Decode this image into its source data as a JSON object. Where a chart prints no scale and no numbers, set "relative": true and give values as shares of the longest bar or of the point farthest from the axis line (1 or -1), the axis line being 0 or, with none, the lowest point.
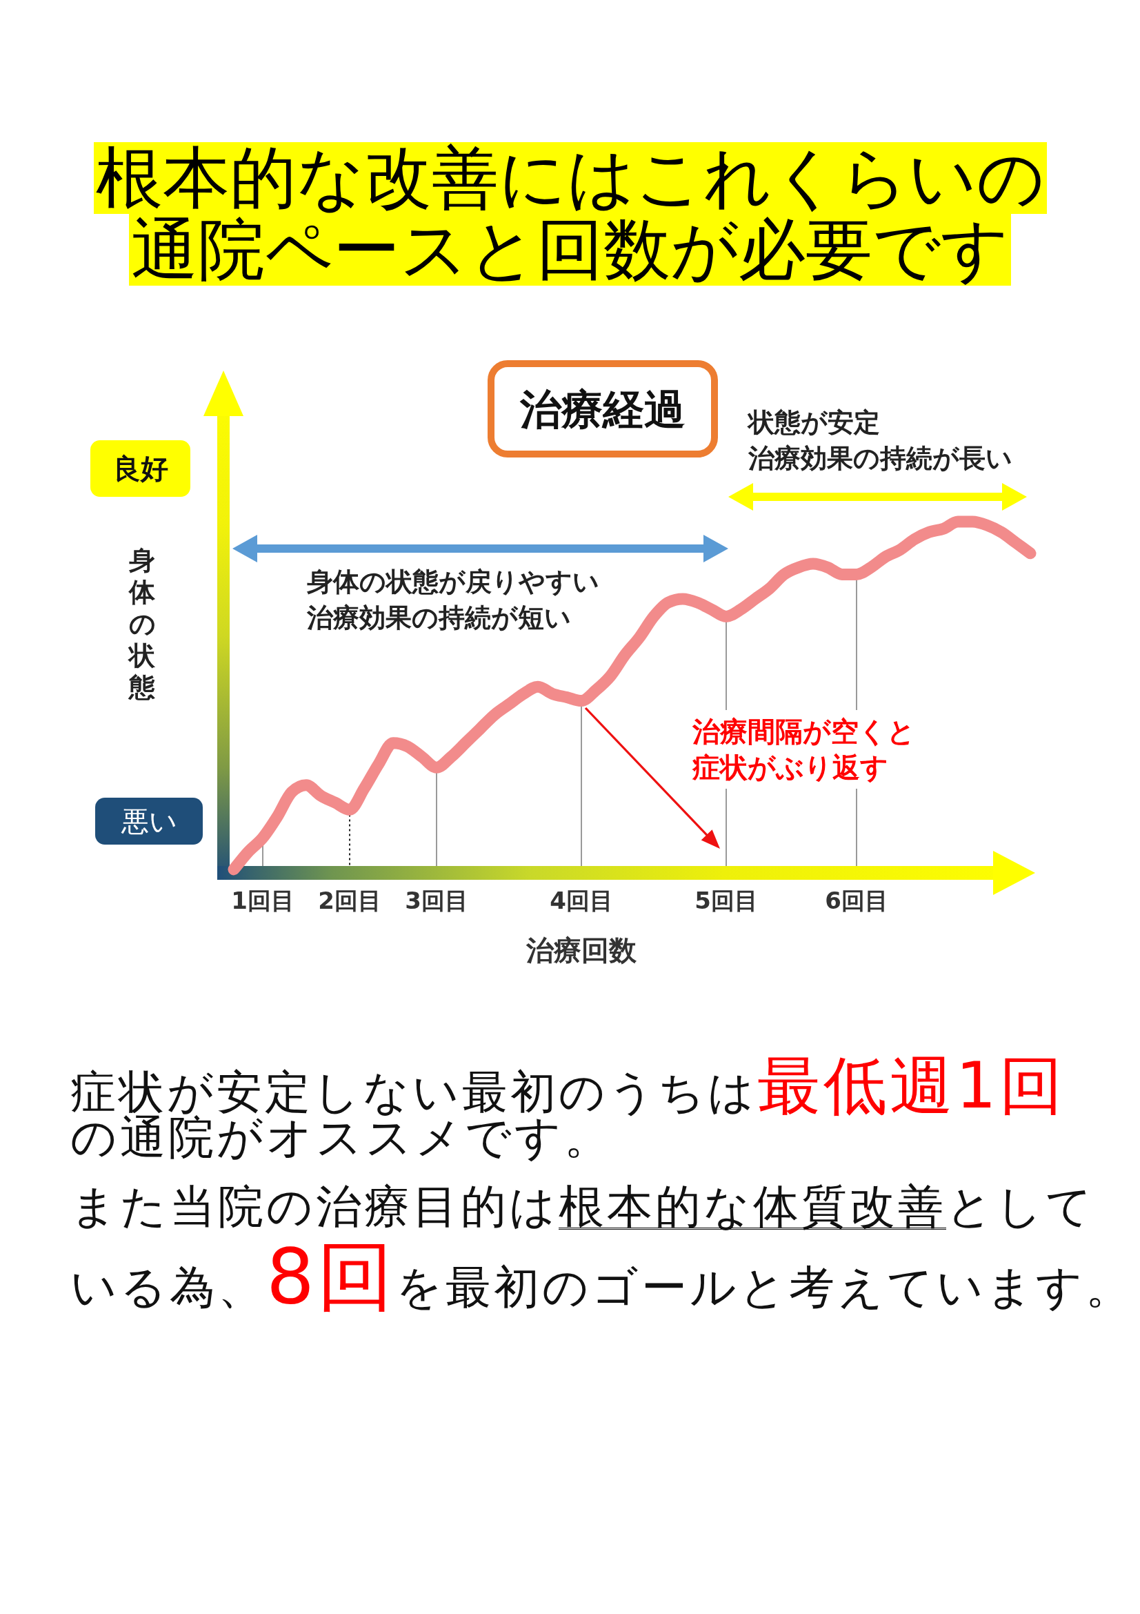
{
  "chart_data": {
    "type": "line",
    "title": "根本的な改善にはこれくらいの通院ペースと回数が必要です",
    "subtitle": "治療経過",
    "xlabel": "治療回数",
    "ylabel": "身体の状態",
    "relative": true,
    "categories": [
      null,
      null,
      "1回目",
      null,
      null,
      null,
      null,
      null,
      "2回目",
      null,
      null,
      null,
      null,
      null,
      "3回目",
      null,
      null,
      null,
      null,
      null,
      null,
      null,
      null,
      null,
      "4回目",
      null,
      null,
      null,
      null,
      null,
      null,
      null,
      null,
      null,
      "5回目",
      null,
      null,
      null,
      null,
      null,
      null,
      null,
      null,
      "6回目",
      null,
      null,
      null,
      null,
      null,
      null,
      null,
      null,
      null,
      null,
      null,
      null
    ],
    "series": [
      {
        "color": "#f28b8b",
        "values": [
          0.01,
          0.06,
          0.1,
          0.16,
          0.23,
          0.25,
          0.22,
          0.2,
          0.18,
          0.24,
          0.31,
          0.37,
          0.36,
          0.33,
          0.3,
          0.33,
          0.37,
          0.41,
          0.45,
          0.48,
          0.51,
          0.53,
          0.51,
          0.5,
          0.49,
          0.52,
          0.56,
          0.62,
          0.67,
          0.73,
          0.77,
          0.78,
          0.77,
          0.75,
          0.73,
          0.75,
          0.78,
          0.81,
          0.85,
          0.87,
          0.88,
          0.87,
          0.85,
          0.85,
          0.87,
          0.9,
          0.92,
          0.95,
          0.97,
          0.98,
          1.0,
          1.0,
          0.99,
          0.97,
          0.94,
          0.91
        ]
      }
    ],
    "ref_lines": [
      {
        "axis": "x",
        "value": "1回目",
        "color": "#9a9a9a"
      },
      {
        "axis": "x",
        "value": "2回目",
        "color": "#222222",
        "line_style": "dotted"
      },
      {
        "axis": "x",
        "value": "3回目",
        "color": "#9a9a9a"
      },
      {
        "axis": "x",
        "value": "4回目",
        "color": "#9a9a9a"
      },
      {
        "axis": "x",
        "value": "5回目",
        "color": "#9a9a9a"
      },
      {
        "axis": "x",
        "value": "6回目",
        "color": "#9a9a9a"
      }
    ],
    "annotations": [
      "状態が安定",
      "治療効果の持続が長い",
      "身体の状態が戻りやすい治療効果の持続が短い",
      "良好",
      "治療間隔が空くと症状がぶり返す",
      "悪い",
      "症状が安定しない最初のうちは",
      "最低週1回",
      "の通院がオススメです。",
      "また当院の治療目的は",
      "根本的な体質改善",
      "として",
      "いる為、",
      "8回",
      "を最初のゴールと考えています。"
    ]
  }
}
